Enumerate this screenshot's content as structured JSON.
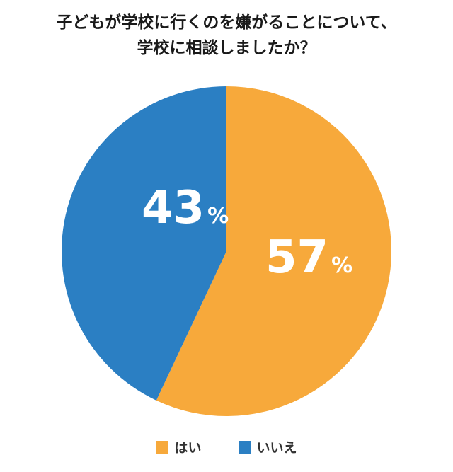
{
  "chart_data": {
    "type": "pie",
    "title_lines": [
      "子どもが学校に行くのを嫌がることについて、",
      "学校に相談しましたか？"
    ],
    "unit": "%",
    "slices": [
      {
        "name": "はい",
        "value": 57,
        "color": "#F7A93B"
      },
      {
        "name": "いいえ",
        "value": 43,
        "color": "#2B7FC3"
      }
    ],
    "legend_placement": "bottom"
  }
}
